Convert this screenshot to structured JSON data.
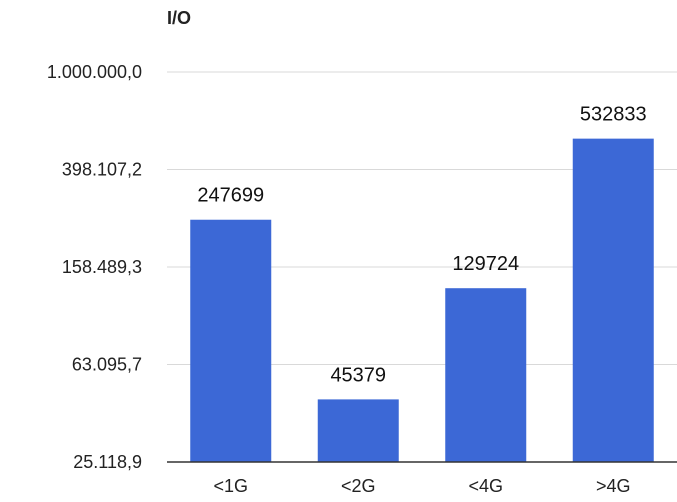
{
  "chart_data": {
    "type": "bar",
    "ylabel": "I/O",
    "scale": "log",
    "categories": [
      "<1G",
      "<2G",
      "<4G",
      ">4G"
    ],
    "values": [
      247699,
      45379,
      129724,
      532833
    ],
    "data_labels": [
      "247699",
      "45379",
      "129724",
      "532833"
    ],
    "yticks": [
      25118.9,
      63095.7,
      158489.3,
      398107.2,
      1000000.0
    ],
    "ytick_labels": [
      "25.118,9",
      "63.095,7",
      "158.489,3",
      "398.107,2",
      "1.000.000,0"
    ],
    "ylim": [
      25118.9,
      1000000.0
    ],
    "grid": true,
    "legend": "none",
    "bar_color": "#3c68d6"
  }
}
